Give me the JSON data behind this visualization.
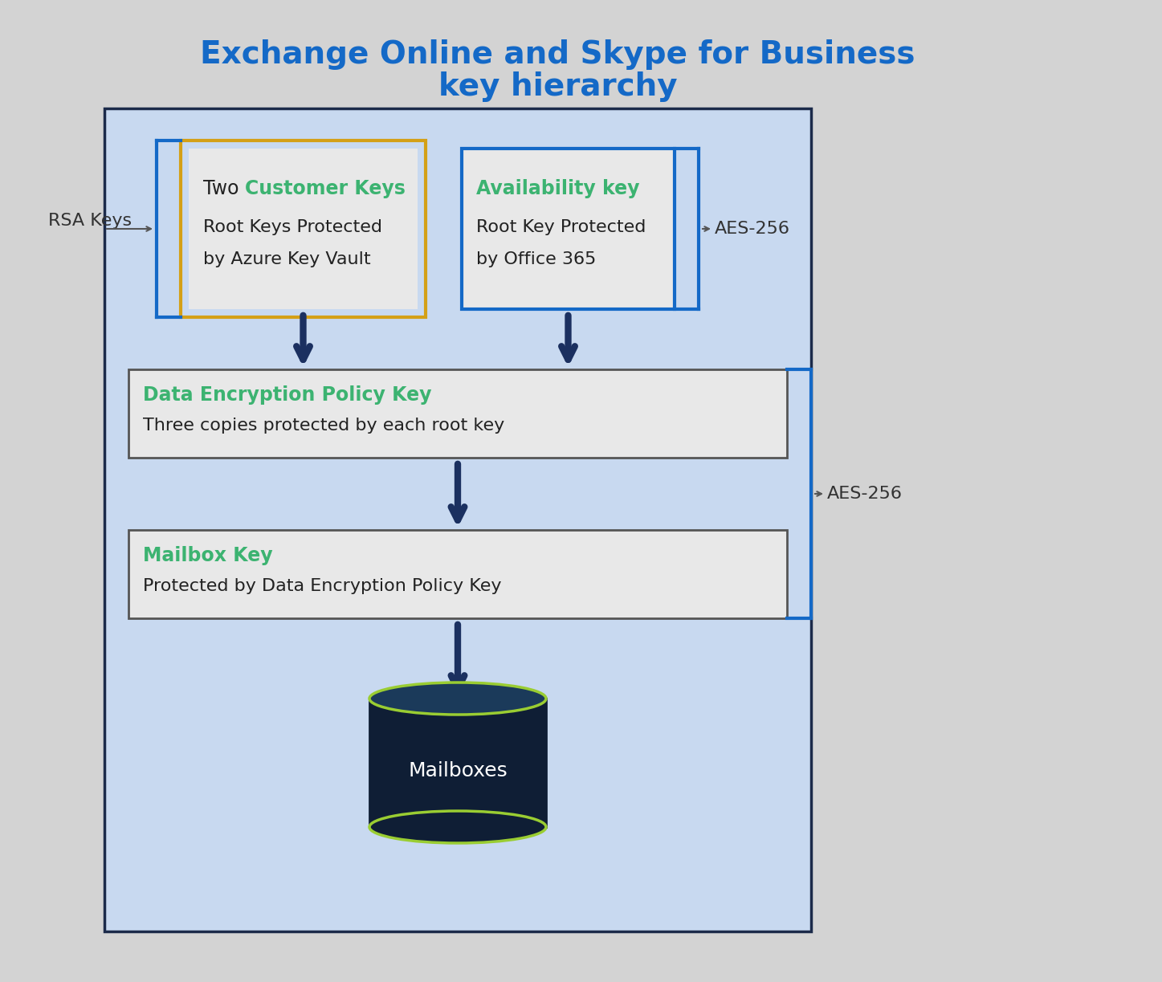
{
  "title_line1": "Exchange Online and Skype for Business",
  "title_line2": "key hierarchy",
  "title_color": "#1469C7",
  "bg_color": "#C8D9F0",
  "outer_bg": "#D3D3D3",
  "box_fill": "#E8E8E8",
  "box_border": "#555555",
  "green_text": "#3CB371",
  "dark_navy": "#1B2A4A",
  "arrow_color": "#1B3060",
  "gold_border": "#D4A017",
  "blue_border": "#1469C7",
  "rsa_label": "RSA Keys",
  "aes_label1": "AES-256",
  "aes_label2": "AES-256",
  "box1_title_black": "Two ",
  "box1_title_green": "Customer Keys",
  "box1_line2": "Root Keys Protected",
  "box1_line3": "by Azure Key Vault",
  "box2_title_green": "Availability key",
  "box2_line2": "Root Key Protected",
  "box2_line3": "by Office 365",
  "box3_title_green": "Data Encryption Policy Key",
  "box3_line2": "Three copies protected by each root key",
  "box4_title_green": "Mailbox Key",
  "box4_line2": "Protected by Data Encryption Policy Key",
  "mailboxes_label": "Mailboxes",
  "lime_color": "#9ACD32",
  "navy_cyl": "#0F1E35"
}
